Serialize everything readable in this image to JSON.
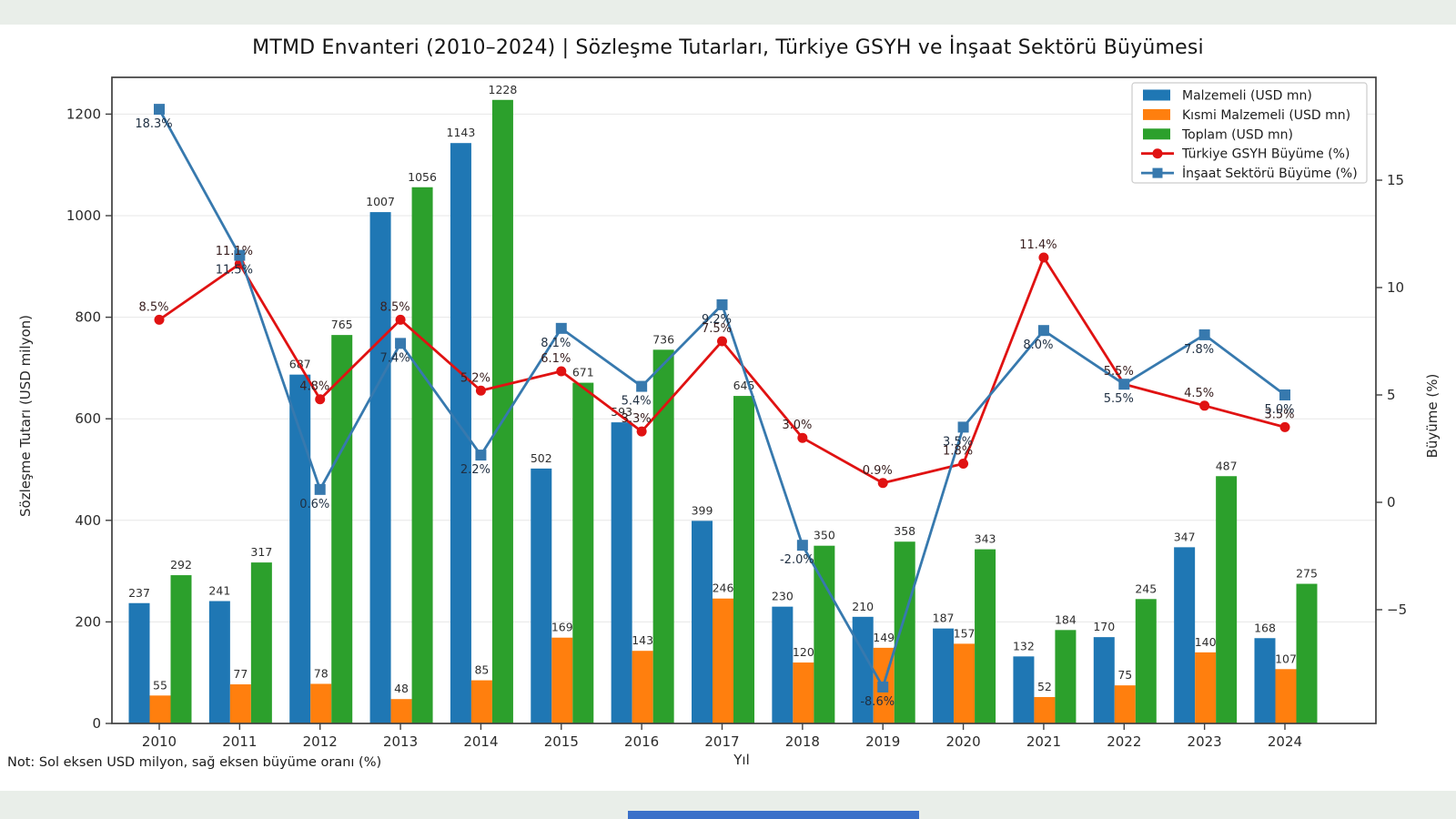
{
  "page": {
    "background_color": "#e9eee9",
    "figure_background": "#ffffff",
    "bottom_bar_color": "#3a70c9"
  },
  "chart": {
    "title": "MTMD Envanteri (2010–2024) | Sözleşme Tutarları, Türkiye GSYH ve İnşaat Sektörü Büyümesi",
    "note": "Not: Sol eksen USD milyon, sağ eksen büyüme oranı (%)",
    "xlabel": "Yıl",
    "ylabel_left": "Sözleşme Tutarı (USD milyon)",
    "ylabel_right": "Büyüme (%)"
  },
  "chart_data": {
    "type": "bar",
    "subtype": "grouped bars + two overlay lines (dual axis)",
    "title": "MTMD Envanteri (2010–2024) | Sözleşme Tutarları, Türkiye GSYH ve İnşaat Sektörü Büyümesi",
    "categories": [
      "2010",
      "2011",
      "2012",
      "2013",
      "2014",
      "2015",
      "2016",
      "2017",
      "2018",
      "2019",
      "2020",
      "2021",
      "2022",
      "2023",
      "2024"
    ],
    "bar_series": [
      {
        "name": "Malzemeli (USD mn)",
        "color": "#1f77b4",
        "values": [
          237,
          241,
          687,
          1007,
          1143,
          502,
          593,
          399,
          230,
          210,
          187,
          132,
          170,
          347,
          168
        ]
      },
      {
        "name": "Kısmi Malzemeli (USD mn)",
        "color": "#ff7f0e",
        "values": [
          55,
          77,
          78,
          48,
          85,
          169,
          143,
          246,
          120,
          149,
          157,
          52,
          75,
          140,
          107
        ]
      },
      {
        "name": "Toplam (USD mn)",
        "color": "#2ca02c",
        "values": [
          292,
          317,
          765,
          1056,
          1228,
          671,
          736,
          645,
          350,
          358,
          343,
          184,
          245,
          487,
          275
        ]
      }
    ],
    "line_series": [
      {
        "name": "Türkiye GSYH Büyüme (%)",
        "color": "#e01212",
        "marker": "circle",
        "label_color": "#3a2020",
        "values": [
          8.5,
          11.1,
          4.8,
          8.5,
          5.2,
          6.1,
          3.3,
          7.5,
          3.0,
          0.9,
          1.8,
          11.4,
          5.5,
          4.5,
          3.5
        ]
      },
      {
        "name": "İnşaat Sektörü Büyüme (%)",
        "color": "#3779ae",
        "marker": "square",
        "label_color": "#1f2f42",
        "values": [
          18.3,
          11.5,
          0.6,
          7.4,
          2.2,
          8.1,
          5.4,
          9.2,
          -2.0,
          -8.6,
          3.5,
          8.0,
          5.5,
          7.8,
          5.0
        ]
      }
    ],
    "axes": {
      "left": {
        "label": "Sözleşme Tutarı (USD milyon)",
        "ticks": [
          0,
          200,
          400,
          600,
          800,
          1000,
          1200
        ],
        "min": 0,
        "max": 1270
      },
      "right": {
        "label": "Büyüme (%)",
        "ticks": [
          -5,
          0,
          5,
          10,
          15
        ],
        "min": -10.3,
        "max": 19.8
      },
      "x": {
        "label": "Yıl"
      }
    },
    "styles": {
      "bar_label_color": "#2e2e2e",
      "grid_color": "#e7e7e7",
      "spine_color": "#3f3f3f",
      "tick_label_color": "#2b2b2b",
      "legend_border": "#cccccc",
      "legend_bg": "#ffffff"
    },
    "grid": "horizontal",
    "legend_position": "top-right"
  }
}
